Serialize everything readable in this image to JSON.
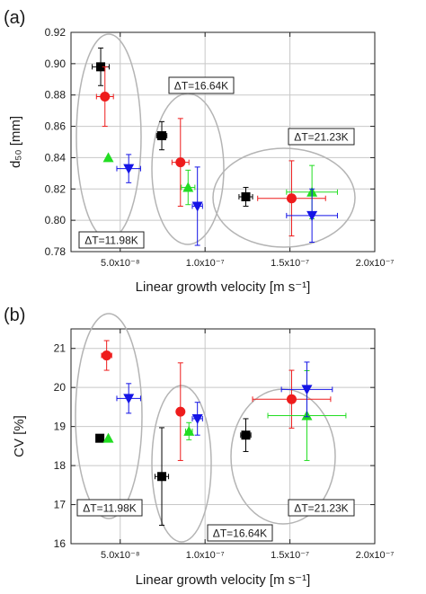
{
  "chart_data": [
    {
      "type": "scatter",
      "panel_label": "(a)",
      "xlabel": "Linear growth velocity [m s⁻¹]",
      "ylabel": "d₅₀ [mm]",
      "xlim": [
        2.1e-08,
        2e-07
      ],
      "ylim": [
        0.78,
        0.92
      ],
      "grid": true,
      "x_ticks": [
        5e-08,
        1e-07,
        1.5e-07,
        2e-07
      ],
      "x_tick_labels": [
        "5.0x10⁻⁸",
        "1.0x10⁻⁷",
        "1.5x10⁻⁷",
        "2.0x10⁻⁷"
      ],
      "y_ticks": [
        0.78,
        0.8,
        0.82,
        0.84,
        0.86,
        0.88,
        0.9,
        0.92
      ],
      "y_tick_labels": [
        "0.78",
        "0.80",
        "0.82",
        "0.84",
        "0.86",
        "0.88",
        "0.90",
        "0.92"
      ],
      "series": [
        {
          "marker": "square",
          "color": "#000000",
          "points": [
            {
              "x": 3.85e-08,
              "y": 0.898,
              "xerr": 5e-09,
              "yerr": 0.012
            },
            {
              "x": 7.45e-08,
              "y": 0.854,
              "xerr": 3e-09,
              "yerr": 0.009
            },
            {
              "x": 1.24e-07,
              "y": 0.815,
              "xerr": 4e-09,
              "yerr": 0.006
            }
          ]
        },
        {
          "marker": "circle",
          "color": "#ee1c1c",
          "points": [
            {
              "x": 4.1e-08,
              "y": 0.879,
              "xerr": 5e-09,
              "yerr": 0.019
            },
            {
              "x": 8.55e-08,
              "y": 0.837,
              "xerr": 5e-09,
              "yerr": 0.028
            },
            {
              "x": 1.51e-07,
              "y": 0.814,
              "xerr": 2e-08,
              "yerr": 0.024
            }
          ]
        },
        {
          "marker": "triangle-up",
          "color": "#22dd22",
          "points": [
            {
              "x": 4.3e-08,
              "y": 0.84,
              "xerr": 0,
              "yerr": 0
            },
            {
              "x": 9e-08,
              "y": 0.821,
              "xerr": 4e-09,
              "yerr": 0.011
            },
            {
              "x": 1.63e-07,
              "y": 0.818,
              "xerr": 1.5e-08,
              "yerr": 0.017
            }
          ]
        },
        {
          "marker": "triangle-down",
          "color": "#1414e6",
          "points": [
            {
              "x": 5.5e-08,
              "y": 0.833,
              "xerr": 7e-09,
              "yerr": 0.009
            },
            {
              "x": 9.55e-08,
              "y": 0.809,
              "xerr": 3e-09,
              "yerr": 0.025
            },
            {
              "x": 1.63e-07,
              "y": 0.803,
              "xerr": 1.5e-08,
              "yerr": 0.017
            }
          ]
        }
      ],
      "annotations": [
        "ΔT=11.98K",
        "ΔT=16.64K",
        "ΔT=21.23K"
      ]
    },
    {
      "type": "scatter",
      "panel_label": "(b)",
      "xlabel": "Linear growth velocity [m s⁻¹]",
      "ylabel": "CV [%]",
      "xlim": [
        2.1e-08,
        2e-07
      ],
      "ylim": [
        16,
        21.5
      ],
      "grid": true,
      "x_ticks": [
        5e-08,
        1e-07,
        1.5e-07,
        2e-07
      ],
      "x_tick_labels": [
        "5.0x10⁻⁸",
        "1.0x10⁻⁷",
        "1.5x10⁻⁷",
        "2.0x10⁻⁷"
      ],
      "y_ticks": [
        16,
        17,
        18,
        19,
        20,
        21
      ],
      "y_tick_labels": [
        "16",
        "17",
        "18",
        "19",
        "20",
        "21"
      ],
      "series": [
        {
          "marker": "square",
          "color": "#000000",
          "points": [
            {
              "x": 3.8e-08,
              "y": 18.7,
              "xerr": 2e-09,
              "yerr": 0
            },
            {
              "x": 7.45e-08,
              "y": 17.72,
              "xerr": 4e-09,
              "yerr": 1.25
            },
            {
              "x": 1.24e-07,
              "y": 18.78,
              "xerr": 3e-09,
              "yerr": 0.42
            }
          ]
        },
        {
          "marker": "circle",
          "color": "#ee1c1c",
          "points": [
            {
              "x": 4.2e-08,
              "y": 20.82,
              "xerr": 3e-09,
              "yerr": 0.38
            },
            {
              "x": 8.55e-08,
              "y": 19.38,
              "xerr": 2e-09,
              "yerr": 1.25
            },
            {
              "x": 1.51e-07,
              "y": 19.7,
              "xerr": 2.3e-08,
              "yerr": 0.74
            }
          ]
        },
        {
          "marker": "triangle-up",
          "color": "#22dd22",
          "points": [
            {
              "x": 4.3e-08,
              "y": 18.7,
              "xerr": 0,
              "yerr": 0
            },
            {
              "x": 9.05e-08,
              "y": 18.88,
              "xerr": 2e-09,
              "yerr": 0.22
            },
            {
              "x": 1.6e-07,
              "y": 19.28,
              "xerr": 2.3e-08,
              "yerr": 1.15
            }
          ]
        },
        {
          "marker": "triangle-down",
          "color": "#1414e6",
          "points": [
            {
              "x": 5.5e-08,
              "y": 19.72,
              "xerr": 7e-09,
              "yerr": 0.38
            },
            {
              "x": 9.55e-08,
              "y": 19.2,
              "xerr": 3e-09,
              "yerr": 0.42
            },
            {
              "x": 1.6e-07,
              "y": 19.95,
              "xerr": 1.5e-08,
              "yerr": 0.7
            }
          ]
        }
      ],
      "annotations": [
        "ΔT=11.98K",
        "ΔT=16.64K",
        "ΔT=21.23K"
      ]
    }
  ]
}
